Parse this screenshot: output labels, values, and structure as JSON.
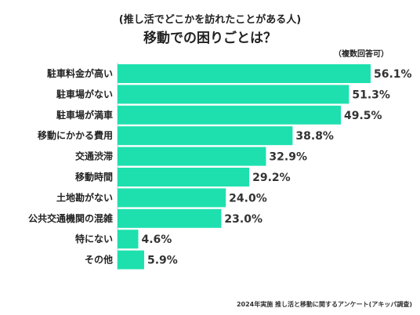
{
  "chart_data": {
    "type": "bar",
    "orientation": "horizontal",
    "subtitle": "(推し活でどこかを訪れたことがある人)",
    "title": "移動での困りごとは？",
    "note": "（複数回答可）",
    "source": "2024年実施 推し活と移動に関するアンケート(アキッパ調査)",
    "categories": [
      "駐車料金が高い",
      "駐車場がない",
      "駐車場が満車",
      "移動にかかる費用",
      "交通渋滞",
      "移動時間",
      "土地勘がない",
      "公共交通機関の混雑",
      "特にない",
      "その他"
    ],
    "values": [
      56.1,
      51.3,
      49.5,
      38.8,
      32.9,
      29.2,
      24.0,
      23.0,
      4.6,
      5.9
    ],
    "value_labels": [
      "56.1%",
      "51.3%",
      "49.5%",
      "38.8%",
      "32.9%",
      "29.2%",
      "24.0%",
      "23.0%",
      "4.6%",
      "5.9%"
    ],
    "xlim": [
      0,
      56.1
    ],
    "bar_color": "#1ee0ae",
    "grid": false,
    "legend": "none"
  }
}
